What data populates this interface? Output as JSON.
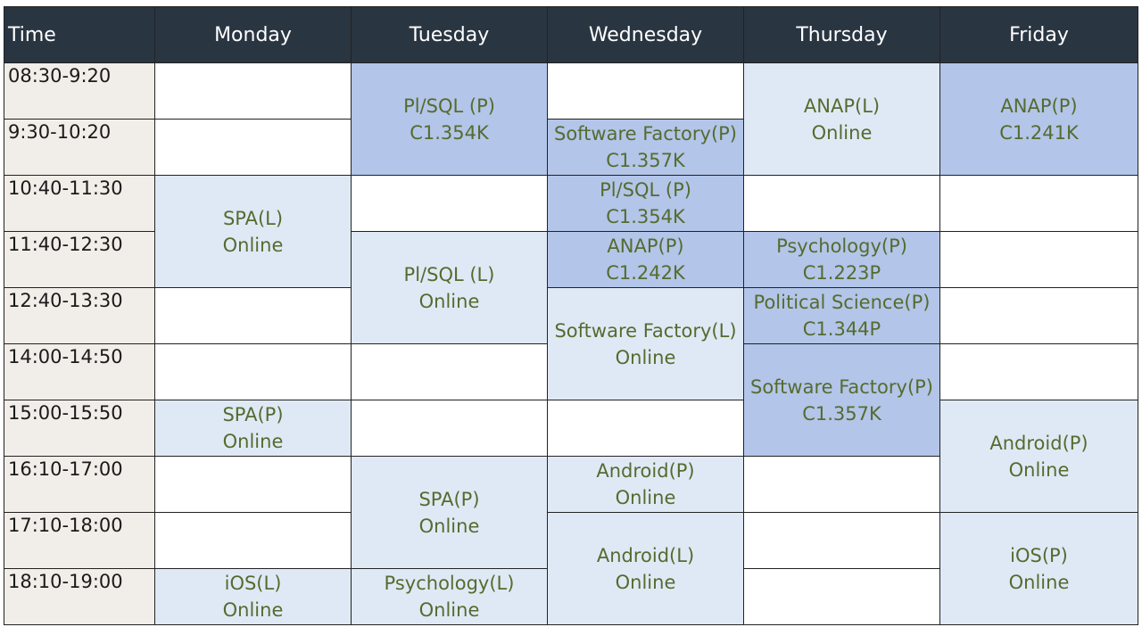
{
  "header": {
    "time": "Time",
    "days": [
      "Monday",
      "Tuesday",
      "Wednesday",
      "Thursday",
      "Friday"
    ]
  },
  "slots": [
    "08:30-9:20",
    "9:30-10:20",
    "10:40-11:30",
    "11:40-12:30",
    "12:40-13:30",
    "14:00-14:50",
    "15:00-15:50",
    "16:10-17:00",
    "17:10-18:00",
    "18:10-19:00"
  ],
  "events": {
    "tue_plsql_p": {
      "name": "Pl/SQL (P)",
      "room": "C1.354K"
    },
    "thu_anap_l": {
      "name": "ANAP(L)",
      "room": "Online"
    },
    "fri_anap_p": {
      "name": "ANAP(P)",
      "room": "C1.241K"
    },
    "wed_swf_p": {
      "name": "Software Factory(P)",
      "room": "C1.357K"
    },
    "mon_spa_l": {
      "name": "SPA(L)",
      "room": "Online"
    },
    "wed_plsql_p": {
      "name": "Pl/SQL (P)",
      "room": "C1.354K"
    },
    "tue_plsql_l": {
      "name": "Pl/SQL (L)",
      "room": "Online"
    },
    "wed_anap_p": {
      "name": "ANAP(P)",
      "room": "C1.242K"
    },
    "thu_psych_p": {
      "name": "Psychology(P)",
      "room": "C1.223P"
    },
    "wed_swf_l": {
      "name": "Software Factory(L)",
      "room": "Online"
    },
    "thu_polsci_p": {
      "name": "Political Science(P)",
      "room": "C1.344P"
    },
    "thu_swf_p": {
      "name": "Software Factory(P)",
      "room": "C1.357K"
    },
    "mon_spa_p": {
      "name": "SPA(P)",
      "room": "Online"
    },
    "fri_android_p": {
      "name": "Android(P)",
      "room": "Online"
    },
    "tue_spa_p": {
      "name": "SPA(P)",
      "room": "Online"
    },
    "wed_android_p": {
      "name": "Android(P)",
      "room": "Online"
    },
    "wed_android_l": {
      "name": "Android(L)",
      "room": "Online"
    },
    "fri_ios_p": {
      "name": "iOS(P)",
      "room": "Online"
    },
    "mon_ios_l": {
      "name": "iOS(L)",
      "room": "Online"
    },
    "tue_psych_l": {
      "name": "Psychology(L)",
      "room": "Online"
    }
  },
  "colors": {
    "header_bg": "#2a3542",
    "time_bg": "#f1ede8",
    "lecture_bg": "#dfe9f5",
    "practice_bg": "#b3c5e8",
    "event_text": "#556b2f"
  }
}
